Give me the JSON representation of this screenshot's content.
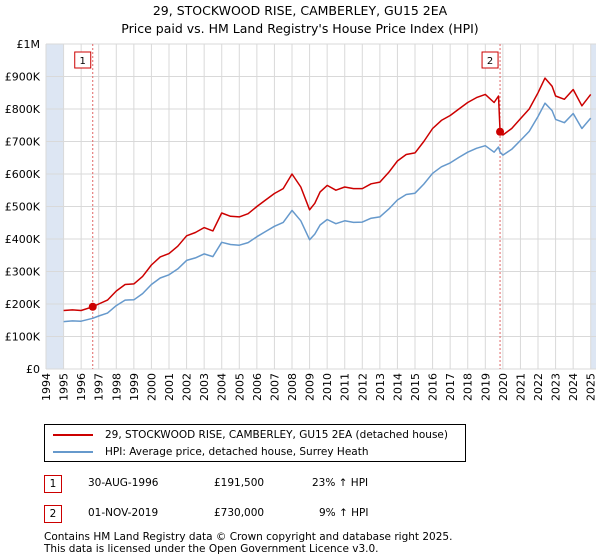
{
  "header": {
    "title": "29, STOCKWOOD RISE, CAMBERLEY, GU15 2EA",
    "subtitle": "Price paid vs. HM Land Registry's House Price Index (HPI)"
  },
  "colors": {
    "property": "#cc0000",
    "hpi": "#6699cc",
    "shade": "#dde6f3",
    "marker_line": "#e06666"
  },
  "chart_data": {
    "type": "line",
    "title": "29, STOCKWOOD RISE, CAMBERLEY, GU15 2EA",
    "subtitle": "Price paid vs. HM Land Registry's House Price Index (HPI)",
    "xlabel": "",
    "ylabel": "",
    "xlim": [
      1994,
      2025.3
    ],
    "ylim": [
      0,
      1000000
    ],
    "yticks": [
      0,
      100000,
      200000,
      300000,
      400000,
      500000,
      600000,
      700000,
      800000,
      900000,
      1000000
    ],
    "ytick_labels": [
      "£0",
      "£100K",
      "£200K",
      "£300K",
      "£400K",
      "£500K",
      "£600K",
      "£700K",
      "£800K",
      "£900K",
      "£1M"
    ],
    "xticks": [
      1994,
      1995,
      1996,
      1997,
      1998,
      1999,
      2000,
      2001,
      2002,
      2003,
      2004,
      2005,
      2006,
      2007,
      2008,
      2009,
      2010,
      2011,
      2012,
      2013,
      2014,
      2015,
      2016,
      2017,
      2018,
      2019,
      2020,
      2021,
      2022,
      2023,
      2024,
      2025
    ],
    "xtick_labels": [
      "1994",
      "1995",
      "1996",
      "1997",
      "1998",
      "1999",
      "2000",
      "2001",
      "2002",
      "2003",
      "2004",
      "2005",
      "2006",
      "2007",
      "2008",
      "2009",
      "2010",
      "2011",
      "2012",
      "2013",
      "2014",
      "2015",
      "2016",
      "2017",
      "2018",
      "2019",
      "2020",
      "2021",
      "2022",
      "2023",
      "2024",
      "2025"
    ],
    "shaded_ranges": [
      [
        1994,
        1995
      ],
      [
        2025,
        2025.3
      ]
    ],
    "grid": true,
    "series": [
      {
        "name": "29, STOCKWOOD RISE, CAMBERLEY, GU15 2EA (detached house)",
        "color": "#cc0000",
        "x": [
          1995.0,
          1995.5,
          1996.0,
          1996.66,
          1997.0,
          1997.5,
          1998.0,
          1998.5,
          1999.0,
          1999.5,
          2000.0,
          2000.5,
          2001.0,
          2001.5,
          2002.0,
          2002.5,
          2003.0,
          2003.5,
          2004.0,
          2004.5,
          2005.0,
          2005.5,
          2006.0,
          2006.5,
          2007.0,
          2007.5,
          2008.0,
          2008.5,
          2009.0,
          2009.3,
          2009.6,
          2010.0,
          2010.5,
          2011.0,
          2011.5,
          2012.0,
          2012.5,
          2013.0,
          2013.5,
          2014.0,
          2014.5,
          2015.0,
          2015.5,
          2016.0,
          2016.5,
          2017.0,
          2017.5,
          2018.0,
          2018.5,
          2019.0,
          2019.5,
          2019.75,
          2019.84,
          2020.0,
          2020.5,
          2021.0,
          2021.5,
          2022.0,
          2022.4,
          2022.8,
          2023.0,
          2023.5,
          2024.0,
          2024.5,
          2025.0
        ],
        "y": [
          180000,
          182000,
          180000,
          191500,
          200000,
          212000,
          240000,
          260000,
          262000,
          285000,
          320000,
          345000,
          355000,
          378000,
          410000,
          420000,
          435000,
          425000,
          480000,
          470000,
          468000,
          478000,
          500000,
          520000,
          540000,
          555000,
          600000,
          560000,
          490000,
          510000,
          545000,
          565000,
          550000,
          560000,
          555000,
          555000,
          570000,
          575000,
          605000,
          640000,
          660000,
          665000,
          700000,
          740000,
          765000,
          780000,
          800000,
          820000,
          835000,
          845000,
          820000,
          840000,
          730000,
          720000,
          740000,
          770000,
          800000,
          850000,
          895000,
          870000,
          840000,
          830000,
          860000,
          810000,
          845000
        ]
      },
      {
        "name": "HPI: Average price, detached house, Surrey Heath",
        "color": "#6699cc",
        "x": [
          1995.0,
          1995.5,
          1996.0,
          1996.66,
          1997.0,
          1997.5,
          1998.0,
          1998.5,
          1999.0,
          1999.5,
          2000.0,
          2000.5,
          2001.0,
          2001.5,
          2002.0,
          2002.5,
          2003.0,
          2003.5,
          2004.0,
          2004.5,
          2005.0,
          2005.5,
          2006.0,
          2006.5,
          2007.0,
          2007.5,
          2008.0,
          2008.5,
          2009.0,
          2009.3,
          2009.6,
          2010.0,
          2010.5,
          2011.0,
          2011.5,
          2012.0,
          2012.5,
          2013.0,
          2013.5,
          2014.0,
          2014.5,
          2015.0,
          2015.5,
          2016.0,
          2016.5,
          2017.0,
          2017.5,
          2018.0,
          2018.5,
          2019.0,
          2019.5,
          2019.75,
          2019.84,
          2020.0,
          2020.5,
          2021.0,
          2021.5,
          2022.0,
          2022.4,
          2022.8,
          2023.0,
          2023.5,
          2024.0,
          2024.5,
          2025.0
        ],
        "y": [
          146000,
          148000,
          147000,
          156000,
          163000,
          172000,
          195000,
          212000,
          213000,
          232000,
          260000,
          280000,
          290000,
          308000,
          334000,
          342000,
          354000,
          346000,
          390000,
          383000,
          381000,
          389000,
          407000,
          423000,
          439000,
          451000,
          488000,
          456000,
          398000,
          415000,
          443000,
          460000,
          447000,
          456000,
          451000,
          452000,
          464000,
          468000,
          492000,
          520000,
          537000,
          541000,
          569000,
          602000,
          622000,
          634000,
          651000,
          667000,
          679000,
          687000,
          667000,
          683000,
          667000,
          658000,
          676000,
          703000,
          731000,
          777000,
          818000,
          795000,
          768000,
          758000,
          786000,
          740000,
          772000
        ]
      }
    ],
    "sales": [
      {
        "id": "1",
        "x": 1996.66,
        "y": 191500
      },
      {
        "id": "2",
        "x": 2019.84,
        "y": 730000
      }
    ]
  },
  "legend": {
    "property_label": "29, STOCKWOOD RISE, CAMBERLEY, GU15 2EA (detached house)",
    "hpi_label": "HPI: Average price, detached house, Surrey Heath"
  },
  "sales_table": [
    {
      "id": "1",
      "date": "30-AUG-1996",
      "price": "£191,500",
      "hpi": "23% ↑ HPI"
    },
    {
      "id": "2",
      "date": "01-NOV-2019",
      "price": "£730,000",
      "hpi": "9% ↑ HPI"
    }
  ],
  "footer": {
    "line1": "Contains HM Land Registry data © Crown copyright and database right 2025.",
    "line2": "This data is licensed under the Open Government Licence v3.0."
  }
}
